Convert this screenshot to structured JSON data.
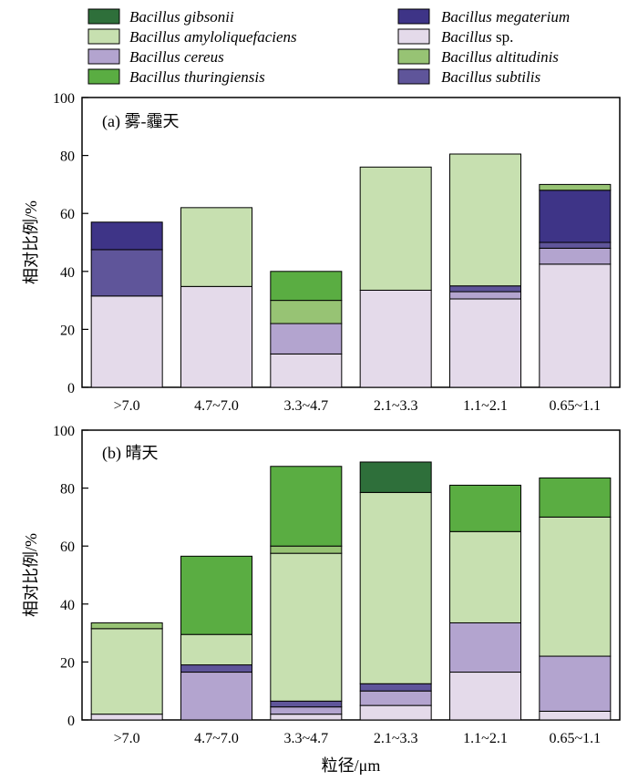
{
  "figure": {
    "xlabel": "粒径/μm"
  },
  "legend": [
    {
      "key": "gibsonii",
      "prefix": "Bacillus gibsonii",
      "suffix": "",
      "color": "#2e6f3a"
    },
    {
      "key": "megaterium",
      "prefix": "Bacillus megaterium",
      "suffix": "",
      "color": "#3e3487"
    },
    {
      "key": "amylo",
      "prefix": "Bacillus amyloliquefaciens",
      "suffix": "",
      "color": "#c7e0b0"
    },
    {
      "key": "sp",
      "prefix": "Bacillus",
      "suffix": " sp.",
      "color": "#e4daea"
    },
    {
      "key": "cereus",
      "prefix": "Bacillus cereus",
      "suffix": "",
      "color": "#b3a4cf"
    },
    {
      "key": "altitudinis",
      "prefix": "Bacillus altitudinis",
      "suffix": "",
      "color": "#97c374"
    },
    {
      "key": "thuringiensis",
      "prefix": "Bacillus thuringiensis",
      "suffix": "",
      "color": "#5aad42"
    },
    {
      "key": "subtilis",
      "prefix": "Bacillus subtilis",
      "suffix": "",
      "color": "#5f559a"
    }
  ],
  "chart_data": [
    {
      "type": "bar",
      "stacked": true,
      "panel_label": "(a) 雾-霾天",
      "ylabel": "相对比例/%",
      "ylim": [
        0,
        100
      ],
      "yticks": [
        0,
        20,
        40,
        60,
        80,
        100
      ],
      "categories": [
        ">7.0",
        "4.7~7.0",
        "3.3~4.7",
        "2.1~3.3",
        "1.1~2.1",
        "0.65~1.1"
      ],
      "series": [
        {
          "key": "sp",
          "values": [
            31.5,
            34.8,
            11.5,
            33.5,
            30.5,
            42.5
          ]
        },
        {
          "key": "cereus",
          "values": [
            0,
            0,
            10.5,
            0,
            2.5,
            5.5
          ]
        },
        {
          "key": "subtilis",
          "values": [
            16,
            0,
            0,
            0,
            2,
            2
          ]
        },
        {
          "key": "altitudinis",
          "values": [
            0,
            0,
            8,
            0,
            0,
            0
          ]
        },
        {
          "key": "thuringiensis",
          "values": [
            0,
            0,
            10,
            0,
            0,
            0
          ]
        },
        {
          "key": "amylo",
          "values": [
            0,
            27.2,
            0,
            42.5,
            45.5,
            0
          ]
        },
        {
          "key": "megaterium",
          "values": [
            9.5,
            0,
            0,
            0,
            0,
            18
          ]
        },
        {
          "key": "altitudinis",
          "values": [
            0,
            0,
            0,
            0,
            0,
            2
          ]
        }
      ]
    },
    {
      "type": "bar",
      "stacked": true,
      "panel_label": "(b) 晴天",
      "ylabel": "相对比例/%",
      "ylim": [
        0,
        100
      ],
      "yticks": [
        0,
        20,
        40,
        60,
        80,
        100
      ],
      "categories": [
        ">7.0",
        "4.7~7.0",
        "3.3~4.7",
        "2.1~3.3",
        "1.1~2.1",
        "0.65~1.1"
      ],
      "series": [
        {
          "key": "sp",
          "values": [
            2,
            0,
            2,
            5,
            16.5,
            3
          ]
        },
        {
          "key": "cereus",
          "values": [
            0,
            16.5,
            2.5,
            5,
            17,
            19
          ]
        },
        {
          "key": "subtilis",
          "values": [
            0,
            2.5,
            2,
            2.5,
            0,
            0
          ]
        },
        {
          "key": "amylo",
          "values": [
            29.5,
            10.5,
            51,
            66,
            31.5,
            48
          ]
        },
        {
          "key": "altitudinis",
          "values": [
            2,
            0,
            2.5,
            0,
            0,
            0
          ]
        },
        {
          "key": "thuringiensis",
          "values": [
            0,
            27,
            27.5,
            0,
            16,
            13.5
          ]
        },
        {
          "key": "gibsonii",
          "values": [
            0,
            0,
            0,
            10.5,
            0,
            0
          ]
        }
      ]
    }
  ]
}
